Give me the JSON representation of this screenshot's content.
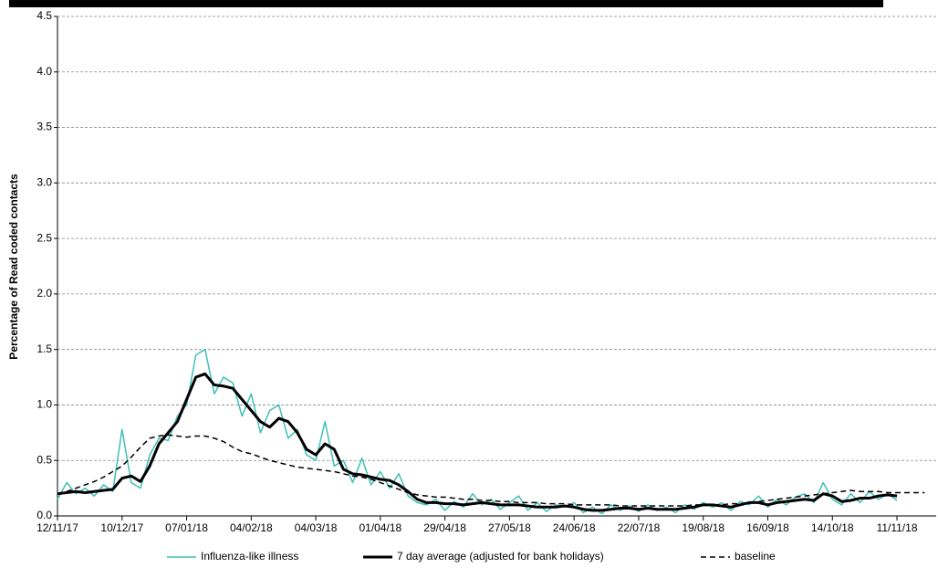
{
  "chart_data": {
    "type": "line",
    "y_label": "Percentage of Read coded contacts",
    "x": [
      "12/11/17",
      "16/11/17",
      "20/11/17",
      "24/11/17",
      "28/11/17",
      "02/12/17",
      "06/12/17",
      "10/12/17",
      "14/12/17",
      "18/12/17",
      "22/12/17",
      "26/12/17",
      "30/12/17",
      "03/01/18",
      "07/01/18",
      "11/01/18",
      "15/01/18",
      "19/01/18",
      "23/01/18",
      "27/01/18",
      "31/01/18",
      "04/02/18",
      "08/02/18",
      "12/02/18",
      "16/02/18",
      "20/02/18",
      "24/02/18",
      "28/02/18",
      "04/03/18",
      "08/03/18",
      "12/03/18",
      "16/03/18",
      "20/03/18",
      "24/03/18",
      "28/03/18",
      "01/04/18",
      "05/04/18",
      "09/04/18",
      "13/04/18",
      "17/04/18",
      "21/04/18",
      "25/04/18",
      "29/04/18",
      "03/05/18",
      "07/05/18",
      "11/05/18",
      "15/05/18",
      "19/05/18",
      "23/05/18",
      "27/05/18",
      "31/05/18",
      "04/06/18",
      "08/06/18",
      "12/06/18",
      "16/06/18",
      "20/06/18",
      "24/06/18",
      "28/06/18",
      "02/07/18",
      "06/07/18",
      "10/07/18",
      "14/07/18",
      "18/07/18",
      "22/07/18",
      "26/07/18",
      "30/07/18",
      "03/08/18",
      "07/08/18",
      "11/08/18",
      "15/08/18",
      "19/08/18",
      "23/08/18",
      "27/08/18",
      "31/08/18",
      "04/09/18",
      "08/09/18",
      "12/09/18",
      "16/09/18",
      "20/09/18",
      "24/09/18",
      "28/09/18",
      "02/10/18",
      "06/10/18",
      "10/10/18",
      "14/10/18",
      "18/10/18",
      "22/10/18",
      "26/10/18",
      "30/10/18",
      "03/11/18",
      "07/11/18",
      "11/11/18",
      "15/11/18",
      "19/11/18",
      "23/11/18"
    ],
    "series": [
      {
        "name": "Influenza-like illness",
        "color": "#40bfb8",
        "line_style": "solid",
        "values": [
          0.15,
          0.3,
          0.2,
          0.25,
          0.18,
          0.28,
          0.22,
          0.78,
          0.3,
          0.25,
          0.55,
          0.7,
          0.68,
          0.9,
          1.0,
          1.45,
          1.5,
          1.1,
          1.25,
          1.2,
          0.9,
          1.1,
          0.75,
          0.95,
          1.0,
          0.7,
          0.78,
          0.55,
          0.5,
          0.85,
          0.45,
          0.5,
          0.3,
          0.52,
          0.28,
          0.4,
          0.25,
          0.38,
          0.18,
          0.12,
          0.1,
          0.15,
          0.05,
          0.13,
          0.08,
          0.2,
          0.1,
          0.15,
          0.06,
          0.12,
          0.18,
          0.05,
          0.12,
          0.04,
          0.1,
          0.08,
          0.12,
          0.03,
          0.08,
          0.02,
          0.1,
          0.05,
          0.09,
          0.04,
          0.1,
          0.05,
          0.08,
          0.03,
          0.1,
          0.06,
          0.12,
          0.08,
          0.12,
          0.05,
          0.13,
          0.1,
          0.18,
          0.08,
          0.15,
          0.1,
          0.17,
          0.2,
          0.12,
          0.3,
          0.15,
          0.1,
          0.2,
          0.12,
          0.22,
          0.15,
          0.2,
          0.14,
          null,
          null,
          null
        ]
      },
      {
        "name": "7 day average (adjusted for bank holidays)",
        "color": "#000000",
        "line_style": "thick",
        "values": [
          0.2,
          0.21,
          0.22,
          0.21,
          0.22,
          0.23,
          0.24,
          0.34,
          0.36,
          0.31,
          0.45,
          0.65,
          0.75,
          0.85,
          1.05,
          1.25,
          1.28,
          1.18,
          1.17,
          1.15,
          1.05,
          0.95,
          0.85,
          0.8,
          0.88,
          0.85,
          0.75,
          0.6,
          0.55,
          0.65,
          0.6,
          0.42,
          0.38,
          0.37,
          0.35,
          0.33,
          0.32,
          0.28,
          0.22,
          0.15,
          0.12,
          0.12,
          0.11,
          0.11,
          0.1,
          0.11,
          0.12,
          0.11,
          0.1,
          0.1,
          0.1,
          0.09,
          0.08,
          0.08,
          0.08,
          0.09,
          0.08,
          0.06,
          0.05,
          0.05,
          0.06,
          0.07,
          0.07,
          0.06,
          0.07,
          0.06,
          0.06,
          0.06,
          0.07,
          0.08,
          0.1,
          0.1,
          0.09,
          0.08,
          0.1,
          0.12,
          0.12,
          0.1,
          0.12,
          0.13,
          0.14,
          0.15,
          0.14,
          0.2,
          0.18,
          0.13,
          0.14,
          0.16,
          0.16,
          0.18,
          0.19,
          0.18,
          null,
          null,
          null
        ]
      },
      {
        "name": "baseline",
        "color": "#000000",
        "line_style": "dashed",
        "values": [
          0.2,
          0.22,
          0.25,
          0.28,
          0.31,
          0.35,
          0.4,
          0.45,
          0.53,
          0.62,
          0.7,
          0.72,
          0.73,
          0.72,
          0.71,
          0.72,
          0.72,
          0.7,
          0.67,
          0.62,
          0.58,
          0.56,
          0.53,
          0.5,
          0.48,
          0.46,
          0.44,
          0.43,
          0.42,
          0.41,
          0.4,
          0.38,
          0.36,
          0.35,
          0.33,
          0.3,
          0.27,
          0.24,
          0.21,
          0.19,
          0.18,
          0.17,
          0.17,
          0.16,
          0.15,
          0.15,
          0.14,
          0.14,
          0.13,
          0.13,
          0.12,
          0.12,
          0.12,
          0.11,
          0.11,
          0.11,
          0.1,
          0.1,
          0.1,
          0.1,
          0.1,
          0.09,
          0.09,
          0.09,
          0.09,
          0.09,
          0.09,
          0.09,
          0.09,
          0.1,
          0.1,
          0.1,
          0.1,
          0.11,
          0.11,
          0.12,
          0.13,
          0.14,
          0.15,
          0.16,
          0.17,
          0.18,
          0.19,
          0.2,
          0.21,
          0.22,
          0.23,
          0.22,
          0.22,
          0.22,
          0.21,
          0.21,
          0.21,
          0.21,
          0.21
        ]
      }
    ],
    "xlim": [
      "12/11/17",
      "28/11/18"
    ],
    "xticks": [
      "12/11/17",
      "10/12/17",
      "07/01/18",
      "04/02/18",
      "04/03/18",
      "01/04/18",
      "29/04/18",
      "27/05/18",
      "24/06/18",
      "22/07/18",
      "19/08/18",
      "16/09/18",
      "14/10/18",
      "11/11/18"
    ],
    "ylim": [
      0,
      4.5
    ],
    "yticks": [
      {
        "value": 0,
        "label": "0.0"
      },
      0.5,
      {
        "value": 1,
        "label": "1.0"
      },
      1.5,
      {
        "value": 2,
        "label": "2.0"
      },
      2.5,
      {
        "value": 3,
        "label": "3.0"
      },
      3.5,
      {
        "value": 4,
        "label": "4.0"
      },
      4.5
    ],
    "grid": true
  }
}
